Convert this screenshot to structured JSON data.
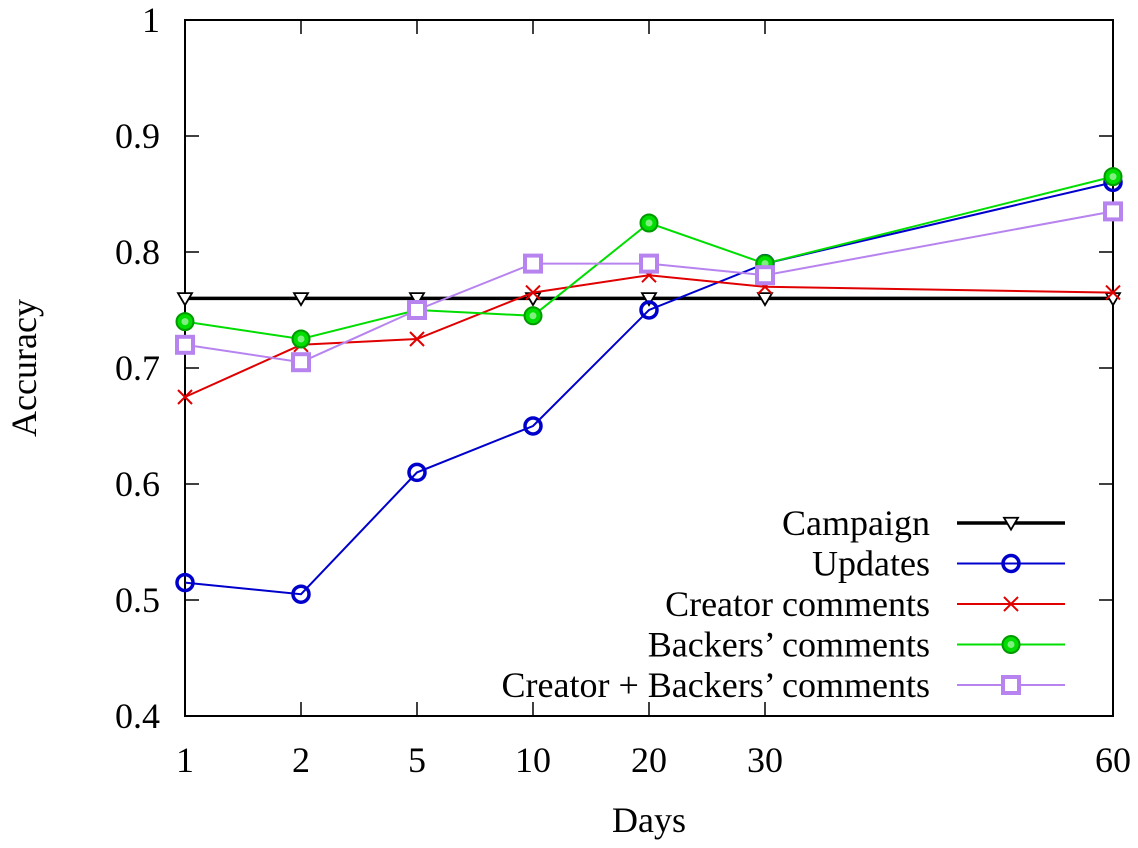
{
  "chart_data": {
    "type": "line",
    "title": "",
    "xlabel": "Days",
    "ylabel": "Accuracy",
    "x": [
      "1",
      "2",
      "5",
      "10",
      "20",
      "30",
      "60"
    ],
    "ylim": [
      0.4,
      1
    ],
    "yticks": [
      "0.4",
      "0.5",
      "0.6",
      "0.7",
      "0.8",
      "0.9",
      "1"
    ],
    "grid": false,
    "legend_position": "bottom-right",
    "series": [
      {
        "name": "Campaign",
        "color": "#000000",
        "marker": "triangle-down",
        "values": [
          0.76,
          0.76,
          0.76,
          0.76,
          0.76,
          0.76,
          0.76
        ]
      },
      {
        "name": "Updates",
        "color": "#0000cc",
        "marker": "circle-open",
        "values": [
          0.515,
          0.505,
          0.61,
          0.65,
          0.75,
          0.79,
          0.86
        ]
      },
      {
        "name": "Creator comments",
        "color": "#e00000",
        "marker": "x",
        "values": [
          0.675,
          0.72,
          0.725,
          0.765,
          0.78,
          0.77,
          0.765
        ]
      },
      {
        "name": "Backers’ comments",
        "color": "#00dd00",
        "marker": "circle-filled",
        "values": [
          0.74,
          0.725,
          0.75,
          0.745,
          0.825,
          0.79,
          0.865
        ]
      },
      {
        "name": "Creator + Backers’ comments",
        "color": "#b784ef",
        "marker": "square",
        "values": [
          0.72,
          0.705,
          0.75,
          0.79,
          0.79,
          0.78,
          0.835
        ]
      }
    ]
  }
}
